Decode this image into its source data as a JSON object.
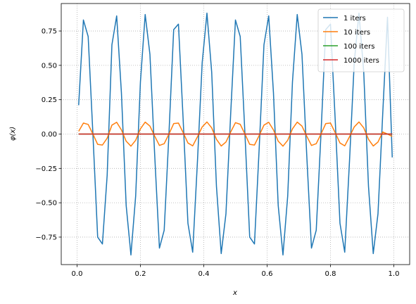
{
  "chart_data": {
    "type": "line",
    "xlabel": "x",
    "ylabel": "φ(x)",
    "xlim": [
      -0.05,
      1.05
    ],
    "ylim": [
      -0.95,
      0.95
    ],
    "xticks": [
      0.0,
      0.2,
      0.4,
      0.6,
      0.8,
      1.0
    ],
    "xtick_labels": [
      "0.0",
      "0.2",
      "0.4",
      "0.6",
      "0.8",
      "1.0"
    ],
    "yticks": [
      -0.75,
      -0.5,
      -0.25,
      0.0,
      0.25,
      0.5,
      0.75
    ],
    "ytick_labels": [
      "−0.75",
      "−0.50",
      "−0.25",
      "0.00",
      "0.25",
      "0.50",
      "0.75"
    ],
    "grid": true,
    "legend_position": "top-right",
    "x": [
      0.005,
      0.02,
      0.035,
      0.05,
      0.065,
      0.08,
      0.095,
      0.11,
      0.125,
      0.14,
      0.155,
      0.17,
      0.185,
      0.2,
      0.215,
      0.23,
      0.245,
      0.26,
      0.275,
      0.29,
      0.305,
      0.32,
      0.335,
      0.35,
      0.365,
      0.38,
      0.395,
      0.41,
      0.425,
      0.44,
      0.455,
      0.47,
      0.485,
      0.5,
      0.515,
      0.53,
      0.545,
      0.56,
      0.575,
      0.59,
      0.605,
      0.62,
      0.635,
      0.65,
      0.665,
      0.68,
      0.695,
      0.71,
      0.725,
      0.74,
      0.755,
      0.77,
      0.785,
      0.8,
      0.815,
      0.83,
      0.845,
      0.86,
      0.875,
      0.89,
      0.905,
      0.92,
      0.935,
      0.95,
      0.965,
      0.98,
      0.995
    ],
    "series": [
      {
        "name": "1 iters",
        "color": "#1f77b4",
        "values": [
          0.21,
          0.83,
          0.71,
          0.0,
          -0.75,
          -0.8,
          -0.3,
          0.65,
          0.86,
          0.3,
          -0.52,
          -0.88,
          -0.45,
          0.38,
          0.87,
          0.58,
          -0.15,
          -0.83,
          -0.7,
          0.0,
          0.76,
          0.8,
          0.1,
          -0.65,
          -0.86,
          -0.2,
          0.52,
          0.88,
          0.45,
          -0.38,
          -0.87,
          -0.58,
          0.15,
          0.83,
          0.71,
          0.0,
          -0.75,
          -0.8,
          -0.1,
          0.65,
          0.86,
          0.3,
          -0.52,
          -0.88,
          -0.45,
          0.38,
          0.87,
          0.58,
          -0.15,
          -0.83,
          -0.7,
          0.0,
          0.76,
          0.8,
          0.1,
          -0.65,
          -0.86,
          -0.2,
          0.52,
          0.88,
          0.45,
          -0.38,
          -0.87,
          -0.58,
          0.15,
          0.85,
          -0.17
        ]
      },
      {
        "name": "10 iters",
        "color": "#ff7f0e",
        "values": [
          0.02,
          0.08,
          0.07,
          0.0,
          -0.075,
          -0.08,
          -0.03,
          0.065,
          0.086,
          0.03,
          -0.052,
          -0.088,
          -0.045,
          0.038,
          0.087,
          0.058,
          -0.015,
          -0.083,
          -0.07,
          0.0,
          0.076,
          0.08,
          0.01,
          -0.065,
          -0.086,
          -0.02,
          0.052,
          0.088,
          0.045,
          -0.038,
          -0.087,
          -0.058,
          0.015,
          0.083,
          0.071,
          0.0,
          -0.075,
          -0.08,
          -0.01,
          0.065,
          0.086,
          0.03,
          -0.052,
          -0.088,
          -0.045,
          0.038,
          0.087,
          0.058,
          -0.015,
          -0.083,
          -0.07,
          0.0,
          0.076,
          0.08,
          0.01,
          -0.065,
          -0.086,
          -0.02,
          0.052,
          0.088,
          0.045,
          -0.038,
          -0.087,
          -0.058,
          0.015,
          0.0,
          -0.017
        ]
      },
      {
        "name": "100 iters",
        "color": "#2ca02c",
        "values": [
          0,
          0,
          0,
          0,
          0,
          0,
          0,
          0,
          0,
          0,
          0,
          0,
          0,
          0,
          0,
          0,
          0,
          0,
          0,
          0,
          0,
          0,
          0,
          0,
          0,
          0,
          0,
          0,
          0,
          0,
          0,
          0,
          0,
          0,
          0,
          0,
          0,
          0,
          0,
          0,
          0,
          0,
          0,
          0,
          0,
          0,
          0,
          0,
          0,
          0,
          0,
          0,
          0,
          0,
          0,
          0,
          0,
          0,
          0,
          0,
          0,
          0,
          0,
          0,
          0,
          0,
          0
        ]
      },
      {
        "name": "1000 iters",
        "color": "#d62728",
        "values": [
          0,
          0,
          0,
          0,
          0,
          0,
          0,
          0,
          0,
          0,
          0,
          0,
          0,
          0,
          0,
          0,
          0,
          0,
          0,
          0,
          0,
          0,
          0,
          0,
          0,
          0,
          0,
          0,
          0,
          0,
          0,
          0,
          0,
          0,
          0,
          0,
          0,
          0,
          0,
          0,
          0,
          0,
          0,
          0,
          0,
          0,
          0,
          0,
          0,
          0,
          0,
          0,
          0,
          0,
          0,
          0,
          0,
          0,
          0,
          0,
          0,
          0,
          0,
          0,
          0,
          0,
          0
        ]
      }
    ]
  }
}
